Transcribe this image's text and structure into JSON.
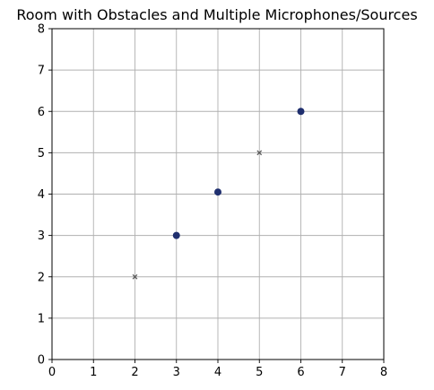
{
  "chart_data": {
    "type": "scatter",
    "title": "Room with Obstacles and Multiple Microphones/Sources",
    "xlabel": "",
    "ylabel": "",
    "xlim": [
      0,
      8
    ],
    "ylim": [
      0,
      8
    ],
    "xticks": [
      "0",
      "1",
      "2",
      "3",
      "4",
      "5",
      "6",
      "7",
      "8"
    ],
    "yticks": [
      "0",
      "1",
      "2",
      "3",
      "4",
      "5",
      "6",
      "7",
      "8"
    ],
    "grid": true,
    "legend": "none",
    "series": [
      {
        "marker": "circle",
        "color": "#1f2f6e",
        "points": [
          {
            "x": 3,
            "y": 3
          },
          {
            "x": 4,
            "y": 4.05
          },
          {
            "x": 6,
            "y": 6
          }
        ]
      },
      {
        "marker": "x",
        "color": "#555555",
        "points": [
          {
            "x": 2,
            "y": 2
          },
          {
            "x": 5,
            "y": 5
          }
        ]
      }
    ]
  }
}
